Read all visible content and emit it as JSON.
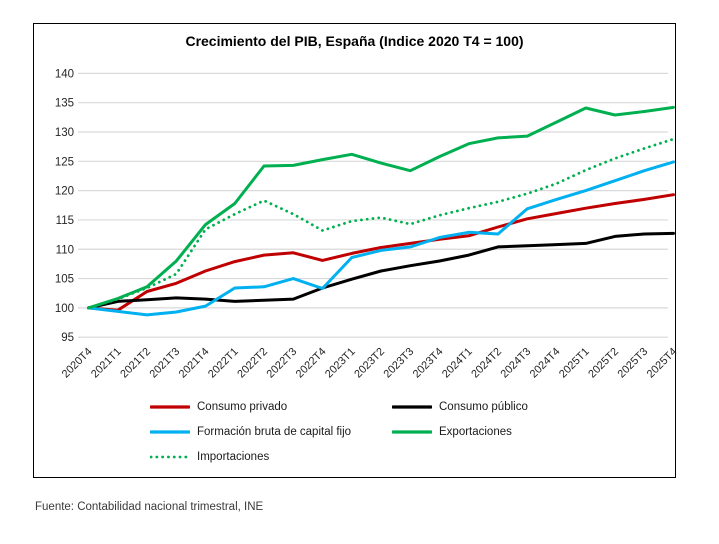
{
  "title": "Crecimiento del PIB, España (Indice 2020 T4 = 100)",
  "source_note": "Fuente: Contabilidad nacional trimestral, INE",
  "colors": {
    "consumo_privado": "#C00000",
    "consumo_publico": "#000000",
    "fbcf": "#00B0F0",
    "exportaciones": "#00B050",
    "importaciones": "#00B050",
    "gridline": "#D9D9D9",
    "axis_text": "#262626"
  },
  "chart_data": {
    "type": "line",
    "title": "Crecimiento del PIB, España (Indice 2020 T4 = 100)",
    "xlabel": "",
    "ylabel": "",
    "ylim": [
      95,
      140
    ],
    "ytick_step": 5,
    "grid": true,
    "legend_position": "bottom",
    "categories": [
      "2020T4",
      "2021T1",
      "2021T2",
      "2021T3",
      "2021T4",
      "2022T1",
      "2022T2",
      "2022T3",
      "2022T4",
      "2023T1",
      "2023T2",
      "2023T3",
      "2023T4",
      "2024T1",
      "2024T2",
      "2024T3",
      "2024T4",
      "2025T1",
      "2025T2",
      "2025T3",
      "2025T4"
    ],
    "series": [
      {
        "name": "Consumo privado",
        "color": "#C00000",
        "style": "solid",
        "values": [
          100,
          99.6,
          102.8,
          104.2,
          106.3,
          107.9,
          109,
          109.4,
          108.1,
          109.3,
          110.3,
          111,
          111.7,
          112.3,
          113.8,
          115.2,
          116.1,
          117,
          117.8,
          118.5,
          119.3
        ]
      },
      {
        "name": "Consumo público",
        "color": "#000000",
        "style": "solid",
        "values": [
          100,
          101.1,
          101.4,
          101.7,
          101.5,
          101.1,
          101.3,
          101.5,
          103.4,
          104.9,
          106.3,
          107.2,
          108,
          109,
          110.4,
          110.6,
          110.8,
          111,
          112.2,
          112.6,
          112.7
        ]
      },
      {
        "name": "Formación bruta de capital fijo",
        "color": "#00B0F0",
        "style": "solid",
        "values": [
          100,
          99.4,
          98.8,
          99.3,
          100.3,
          103.4,
          103.6,
          105,
          103.3,
          108.6,
          109.8,
          110.4,
          112,
          112.9,
          112.6,
          116.9,
          118.5,
          120,
          121.7,
          123.4,
          124.9
        ]
      },
      {
        "name": "Exportaciones",
        "color": "#00B050",
        "style": "solid",
        "values": [
          100,
          101.6,
          103.6,
          108,
          114.2,
          117.8,
          124.2,
          124.3,
          125.3,
          126.2,
          124.7,
          123.4,
          125.8,
          128,
          129,
          129.3,
          131.7,
          134.1,
          132.9,
          133.5,
          134.2
        ]
      },
      {
        "name": "Importaciones",
        "color": "#00B050",
        "style": "dotted",
        "values": [
          100,
          101.5,
          103.4,
          105.8,
          113.4,
          116,
          118.3,
          116,
          113.2,
          114.8,
          115.4,
          114.3,
          115.8,
          117,
          118.1,
          119.5,
          121.2,
          123.5,
          125.5,
          127.2,
          128.8
        ]
      }
    ]
  }
}
